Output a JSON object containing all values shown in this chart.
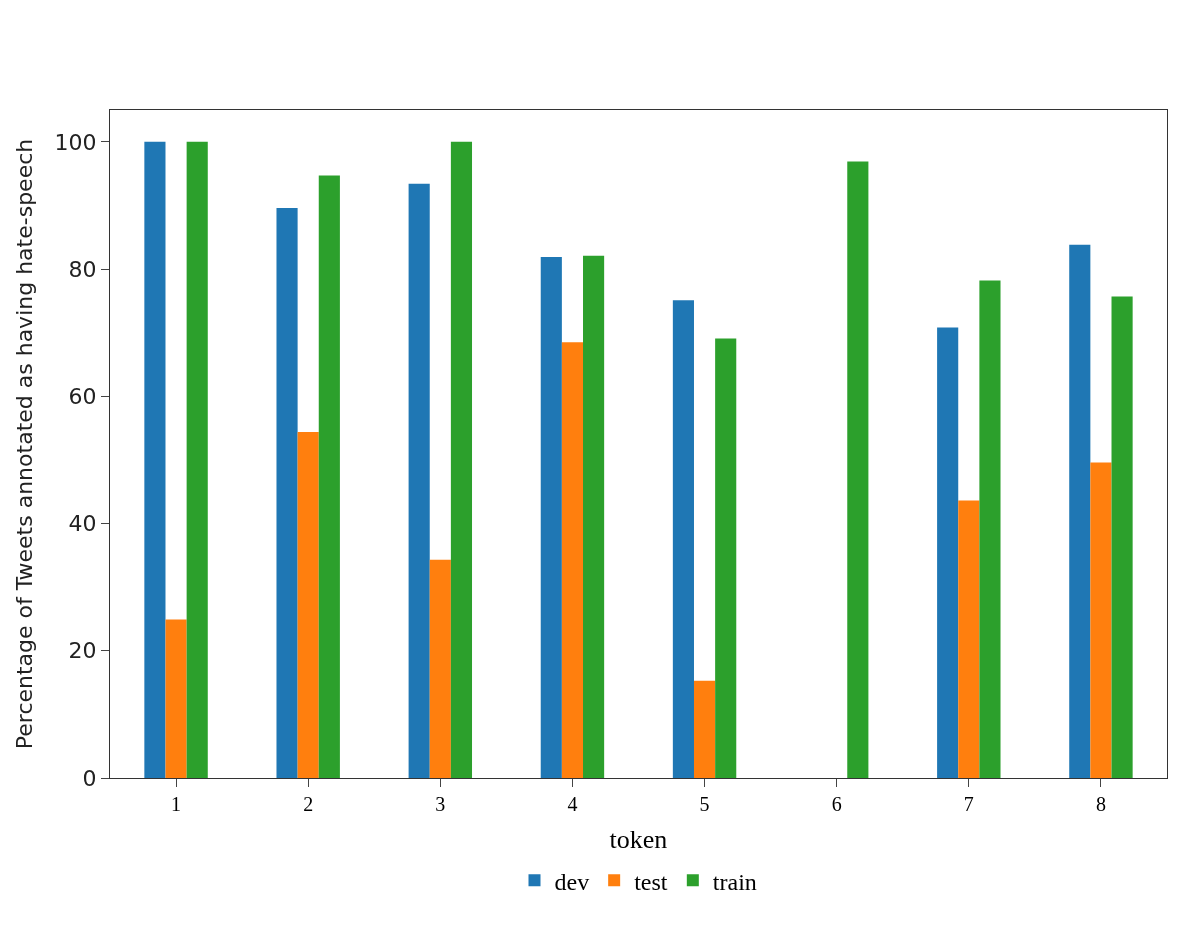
{
  "chart_data": {
    "type": "bar",
    "xlabel": "token",
    "ylabel": "Percentage of Tweets annotated as having hate-speech",
    "categories": [
      "1",
      "2",
      "3",
      "4",
      "5",
      "6",
      "7",
      "8"
    ],
    "series": [
      {
        "name": "dev",
        "color": "#1f77b4",
        "values": [
          100,
          89.6,
          93.4,
          81.9,
          75.1,
          0,
          70.8,
          83.8
        ]
      },
      {
        "name": "test",
        "color": "#ff7f0e",
        "values": [
          24.9,
          54.4,
          34.3,
          68.5,
          15.3,
          0,
          43.6,
          49.6
        ]
      },
      {
        "name": "train",
        "color": "#2ca02c",
        "values": [
          100,
          94.7,
          100,
          82.1,
          69.1,
          96.9,
          78.2,
          75.7
        ]
      }
    ],
    "ylim": [
      0,
      105
    ],
    "yticks": [
      0,
      20,
      40,
      60,
      80,
      100
    ],
    "legend": "bottom"
  }
}
